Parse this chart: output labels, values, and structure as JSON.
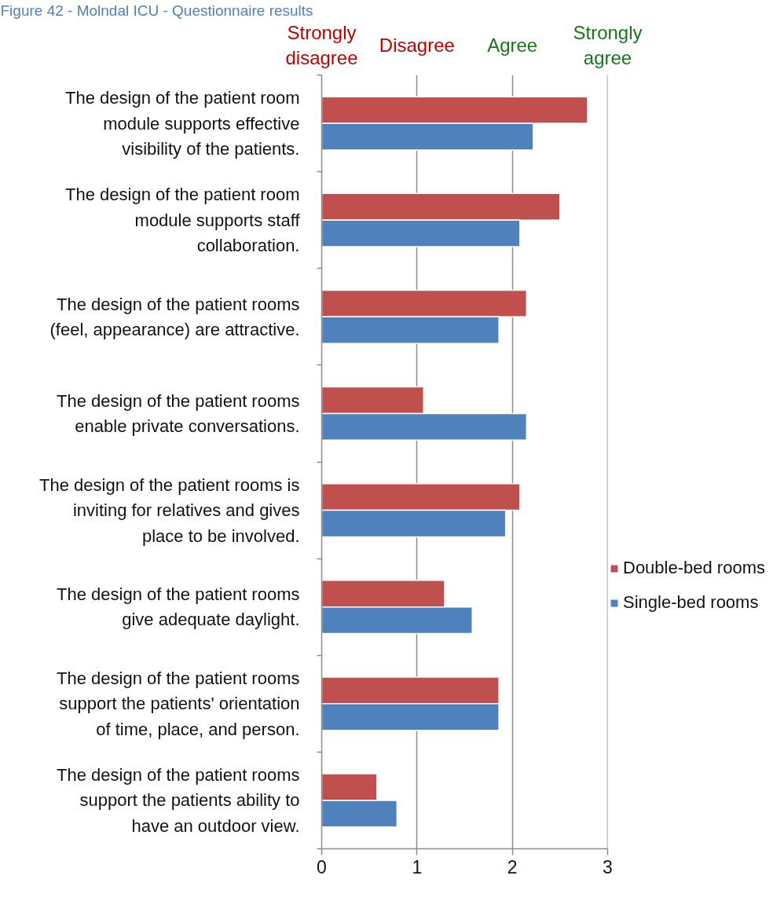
{
  "chart_data": {
    "type": "bar",
    "orientation": "horizontal",
    "title": "Figure 42 - Molndal ICU - Questionnaire results",
    "categories": [
      "The design of the patient room\nmodule supports effective\nvisibility of the patients.",
      "The design of the patient room\nmodule supports staff\ncollaboration.",
      "The design of the patient rooms\n(feel, appearance) are attractive.",
      "The design of the patient rooms\nenable private conversations.",
      "The design of the patient rooms is\ninviting for relatives and gives\nplace to be involved.",
      "The design of the patient rooms\ngive adequate daylight.",
      "The design of the patient rooms\nsupport the patients' orientation\nof time, place, and person.",
      "The design of the patient rooms\nsupport the patients ability to\nhave an outdoor view."
    ],
    "series": [
      {
        "name": "Double-bed rooms",
        "color": "#c0504d",
        "values": [
          2.79,
          2.5,
          2.15,
          1.07,
          2.08,
          1.29,
          1.86,
          0.58
        ]
      },
      {
        "name": "Single-bed rooms",
        "color": "#4f81bd",
        "values": [
          2.22,
          2.08,
          1.86,
          2.15,
          1.93,
          1.58,
          1.86,
          0.79
        ]
      }
    ],
    "xlim": [
      0,
      3
    ],
    "xticks": [
      0,
      1,
      2,
      3
    ],
    "annotations": [
      "Strongly\ndisagree",
      "Disagree",
      "Agree",
      "Strongly\nagree"
    ],
    "grid": "x",
    "legend": "right"
  }
}
